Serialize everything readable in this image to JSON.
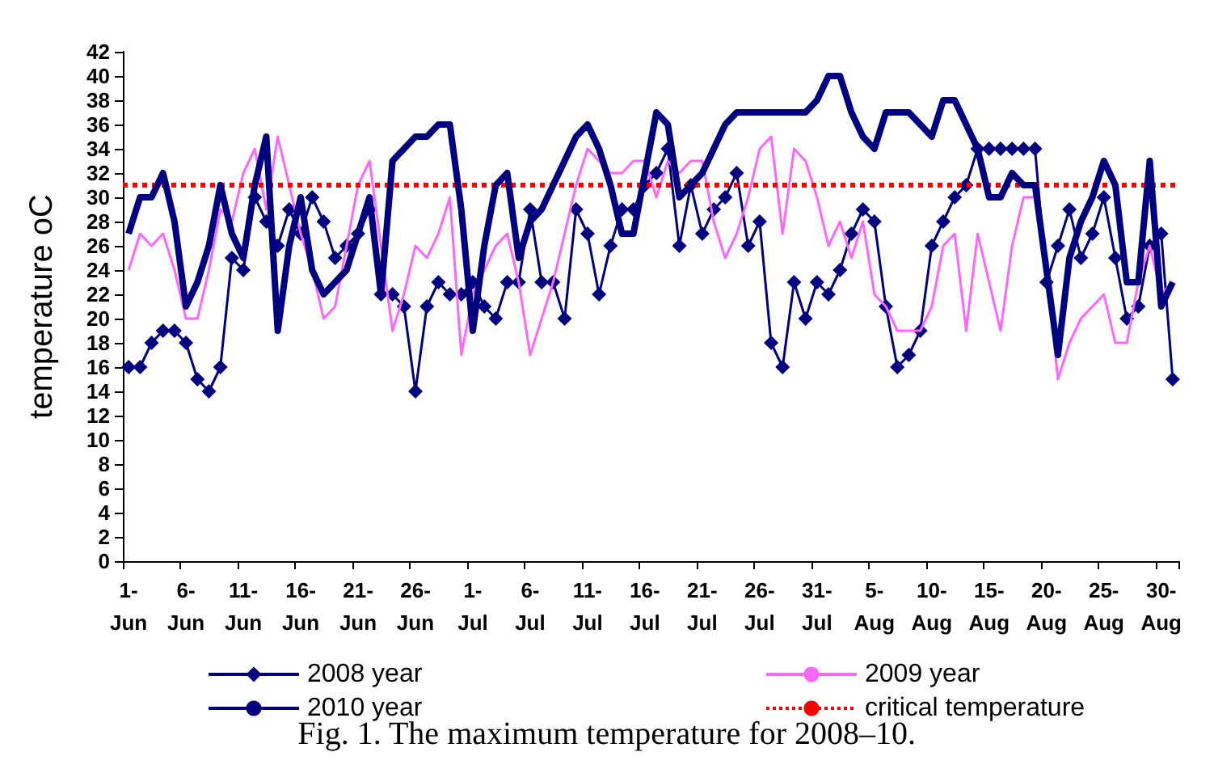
{
  "chart_data": {
    "type": "line",
    "ylabel": "temperature oC",
    "annotations": [
      "Fig. 1. The maximum temperature for 2008–10."
    ],
    "categories": [
      "1-Jun",
      null,
      null,
      null,
      null,
      "6-Jun",
      null,
      null,
      null,
      null,
      "11-Jun",
      null,
      null,
      null,
      null,
      "16-Jun",
      null,
      null,
      null,
      null,
      "21-Jun",
      null,
      null,
      null,
      null,
      "26-Jun",
      null,
      null,
      null,
      null,
      "1-Jul",
      null,
      null,
      null,
      null,
      "6-Jul",
      null,
      null,
      null,
      null,
      "11-Jul",
      null,
      null,
      null,
      null,
      "16-Jul",
      null,
      null,
      null,
      null,
      "21-Jul",
      null,
      null,
      null,
      null,
      "26-Jul",
      null,
      null,
      null,
      null,
      "31-Jul",
      null,
      null,
      null,
      null,
      "5-Aug",
      null,
      null,
      null,
      null,
      "10-Aug",
      null,
      null,
      null,
      null,
      "15-Aug",
      null,
      null,
      null,
      null,
      "20-Aug",
      null,
      null,
      null,
      null,
      "25-Aug",
      null,
      null,
      null,
      null,
      "30-Aug",
      null
    ],
    "series": [
      {
        "name": "2008 year",
        "color": "#000080",
        "marker": "diamond",
        "values": [
          16,
          16,
          18,
          19,
          19,
          18,
          15,
          14,
          16,
          25,
          24,
          30,
          28,
          26,
          29,
          27,
          30,
          28,
          25,
          26,
          27,
          29,
          22,
          22,
          21,
          14,
          21,
          23,
          22,
          22,
          23,
          21,
          20,
          23,
          23,
          29,
          23,
          23,
          20,
          29,
          27,
          22,
          26,
          29,
          29,
          31,
          32,
          34,
          26,
          31,
          27,
          29,
          30,
          32,
          26,
          28,
          18,
          16,
          23,
          20,
          23,
          22,
          24,
          27,
          29,
          28,
          21,
          16,
          17,
          19,
          26,
          28,
          30,
          31,
          34,
          34,
          34,
          34,
          34,
          34,
          23,
          26,
          29,
          25,
          27,
          30,
          25,
          20,
          21,
          26,
          27,
          15
        ]
      },
      {
        "name": "2009 year",
        "color": "#ff66ff",
        "marker": "none",
        "values": [
          24,
          27,
          26,
          27,
          24,
          20,
          20,
          24,
          29,
          28,
          32,
          34,
          29,
          35,
          31,
          27,
          24,
          20,
          21,
          26,
          31,
          33,
          26,
          19,
          22,
          26,
          25,
          27,
          30,
          17,
          22,
          24,
          26,
          27,
          23,
          17,
          20,
          23,
          27,
          31,
          34,
          33,
          32,
          32,
          33,
          33,
          30,
          33,
          32,
          33,
          33,
          28,
          25,
          27,
          30,
          34,
          35,
          27,
          34,
          33,
          30,
          26,
          28,
          25,
          28,
          22,
          21,
          19,
          19,
          19,
          21,
          26,
          27,
          19,
          27,
          23,
          19,
          26,
          30,
          30,
          24,
          15,
          18,
          20,
          21,
          22,
          18,
          18,
          23,
          26,
          22,
          23
        ]
      },
      {
        "name": "2010 year",
        "color": "#000080",
        "marker": "none",
        "values": [
          27,
          30,
          30,
          32,
          28,
          21,
          23,
          26,
          31,
          27,
          25,
          31,
          35,
          19,
          26,
          30,
          24,
          22,
          23,
          24,
          27,
          30,
          22,
          33,
          34,
          35,
          35,
          36,
          36,
          29,
          19,
          26,
          31,
          32,
          25,
          28,
          29,
          31,
          33,
          35,
          36,
          34,
          31,
          27,
          27,
          32,
          37,
          36,
          30,
          31,
          32,
          34,
          36,
          37,
          37,
          37,
          37,
          37,
          37,
          37,
          38,
          40,
          40,
          37,
          35,
          34,
          37,
          37,
          37,
          36,
          35,
          38,
          38,
          36,
          34,
          30,
          30,
          32,
          31,
          31,
          24,
          17,
          25,
          28,
          30,
          33,
          31,
          23,
          23,
          33,
          21,
          23
        ]
      }
    ],
    "ref_lines": [
      {
        "axis": "y",
        "value": 31,
        "label": "critical temperature",
        "color": "#ff0000",
        "line_style": "dotted"
      }
    ],
    "ylim": [
      0,
      42
    ],
    "yticks": [
      0,
      2,
      4,
      6,
      8,
      10,
      12,
      14,
      16,
      18,
      20,
      22,
      24,
      26,
      28,
      30,
      32,
      34,
      36,
      38,
      40,
      42
    ],
    "grid": false,
    "legend": "bottom"
  }
}
